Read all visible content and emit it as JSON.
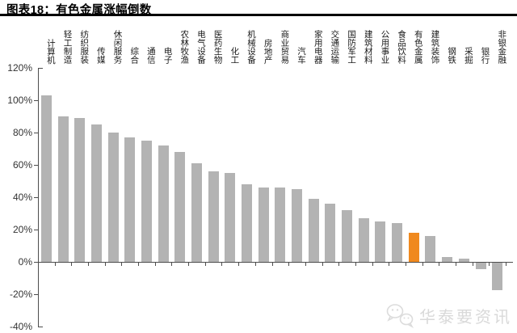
{
  "header": {
    "title": "图表18：有色金属涨幅倒数"
  },
  "watermark": {
    "icon": "wechat-icon",
    "text": "华泰要资讯"
  },
  "colors": {
    "bar": "#b3b3b3",
    "highlight": "#f0891e",
    "axis": "#4d4d4d",
    "tick_label": "#333333",
    "category_label": "#1a1a1a",
    "title": "#000000",
    "watermark": "#d9d9d9"
  },
  "chart_data": {
    "type": "bar",
    "title": "图表18：有色金属涨幅倒数",
    "categories": [
      "计算机",
      "轻工制造",
      "纺织服装",
      "传媒",
      "休闲服务",
      "综合",
      "通信",
      "电子",
      "农林牧渔",
      "电气设备",
      "医药生物",
      "化工",
      "机械设备",
      "房地产",
      "商业贸易",
      "汽车",
      "家用电器",
      "交通运输",
      "国防军工",
      "建筑材料",
      "公用事业",
      "食品饮料",
      "有色金属",
      "建筑装饰",
      "钢铁",
      "采掘",
      "银行",
      "非银金融"
    ],
    "values": [
      103,
      90,
      89,
      85,
      80,
      77,
      75,
      72,
      68,
      61,
      56,
      55,
      48,
      46,
      46,
      45,
      39,
      36,
      32,
      27,
      25,
      24,
      18,
      16,
      3,
      2,
      -4,
      -17
    ],
    "unit": "%",
    "highlight_category": "有色金属",
    "highlight_index": 22,
    "ylim": [
      -40,
      120
    ],
    "ytick_step": 20,
    "ytick_labels": [
      "120%",
      "100%",
      "80%",
      "60%",
      "40%",
      "20%",
      "0%",
      "-20%",
      "-40%"
    ],
    "grid": false,
    "legend": false,
    "xlabel": "",
    "ylabel": ""
  }
}
